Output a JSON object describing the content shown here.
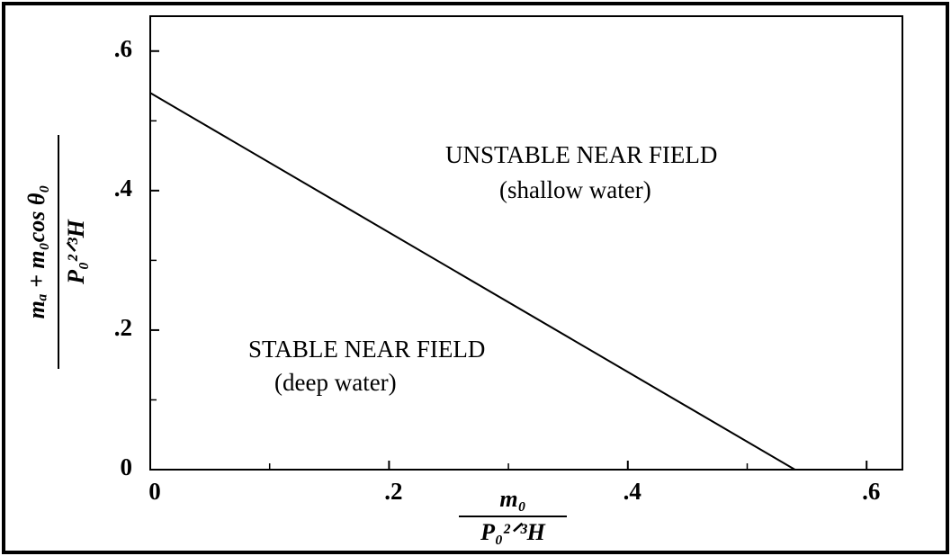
{
  "chart_data": {
    "type": "line",
    "x": [
      0,
      0.54
    ],
    "series": [
      {
        "color": "#000000",
        "values": [
          0.54,
          0
        ]
      }
    ],
    "xlim": [
      0,
      0.63
    ],
    "ylim": [
      0,
      0.65
    ],
    "xticks": [
      0,
      {
        "value": 0.2,
        "label": ".2"
      },
      {
        "value": 0.4,
        "label": ".4"
      },
      {
        "value": 0.6,
        "label": ".6"
      }
    ],
    "yticks": [
      0,
      {
        "value": 0.2,
        "label": ".2"
      },
      {
        "value": 0.4,
        "label": ".4"
      },
      {
        "value": 0.6,
        "label": ".6"
      }
    ],
    "xminorticks": [
      0.1,
      0.3,
      0.5
    ],
    "yminorticks": [
      0.1,
      0.3,
      0.5
    ],
    "xlabel": {
      "numerator": "m₀",
      "denominator": "P₀²ᐟ³H"
    },
    "ylabel": {
      "numerator": "mₐ + m₀cos θ₀",
      "denominator": "P₀²ᐟ³H"
    },
    "annotations": [
      "UNSTABLE NEAR FIELD",
      "(shallow water)",
      "STABLE NEAR FIELD",
      "(deep water)"
    ]
  }
}
